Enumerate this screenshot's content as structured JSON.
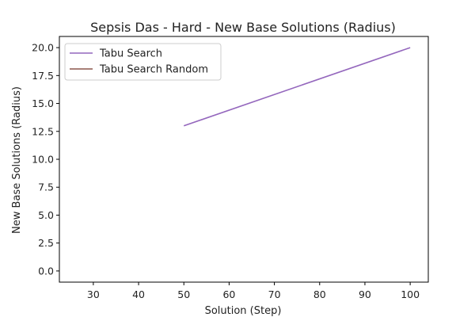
{
  "chart_data": {
    "type": "line",
    "title": "Sepsis Das - Hard - New Base Solutions (Radius)",
    "xlabel": "Solution (Step)",
    "ylabel": "New Base Solutions (Radius)",
    "xlim": [
      22.5,
      104
    ],
    "ylim": [
      -1.0,
      21.0
    ],
    "xticks": [
      30,
      40,
      50,
      60,
      70,
      80,
      90,
      100
    ],
    "yticks": [
      0.0,
      2.5,
      5.0,
      7.5,
      10.0,
      12.5,
      15.0,
      17.5,
      20.0
    ],
    "xtick_labels": [
      "30",
      "40",
      "50",
      "60",
      "70",
      "80",
      "90",
      "100"
    ],
    "ytick_labels": [
      "0.0",
      "2.5",
      "5.0",
      "7.5",
      "10.0",
      "12.5",
      "15.0",
      "17.5",
      "20.0"
    ],
    "grid": false,
    "legend_position": "top-left",
    "series": [
      {
        "name": "Tabu Search",
        "color": "#9467bd",
        "x": [
          50,
          100
        ],
        "y": [
          13.0,
          20.0
        ]
      },
      {
        "name": "Tabu Search Random",
        "color": "#8c564b",
        "x": [],
        "y": []
      }
    ]
  }
}
